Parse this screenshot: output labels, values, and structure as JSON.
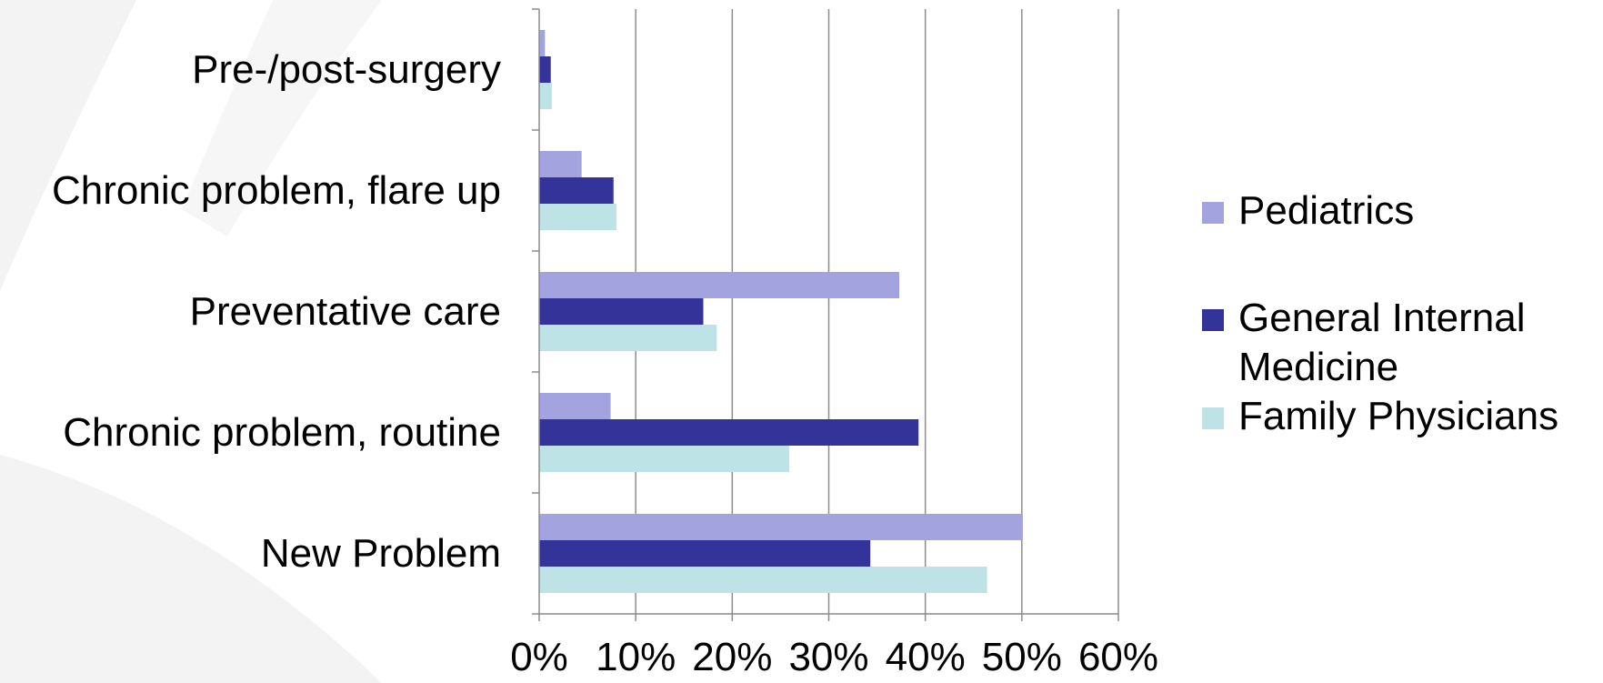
{
  "chart_data": {
    "type": "bar",
    "orientation": "horizontal",
    "categories": [
      "New Problem",
      "Chronic problem, routine",
      "Preventative care",
      "Chronic problem, flare up",
      "Pre-/post-surgery"
    ],
    "series": [
      {
        "name": "Pediatrics",
        "color": "#a3a3e0",
        "values": [
          50.1,
          7.4,
          37.3,
          4.4,
          0.6
        ]
      },
      {
        "name": "General Internal Medicine",
        "color": "#333399",
        "values": [
          34.3,
          39.3,
          17.0,
          7.7,
          1.2
        ]
      },
      {
        "name": "Family Physicians",
        "color": "#bde3e6",
        "values": [
          46.4,
          25.9,
          18.4,
          8.0,
          1.3
        ]
      }
    ],
    "x_ticks": [
      "0%",
      "10%",
      "20%",
      "30%",
      "40%",
      "50%",
      "60%"
    ],
    "xlim": [
      0,
      60
    ],
    "grid": true,
    "legend_position": "right",
    "title": "",
    "xlabel": "",
    "ylabel": ""
  }
}
